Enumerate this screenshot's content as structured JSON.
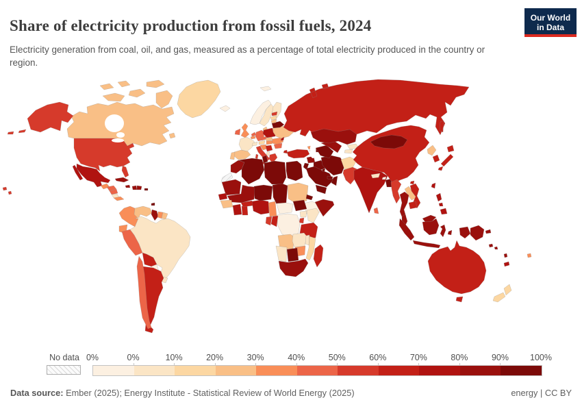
{
  "header": {
    "title": "Share of electricity production from fossil fuels, 2024",
    "subtitle": "Electricity generation from coal, oil, and gas, measured as a percentage of total electricity produced in the country or region."
  },
  "logo": {
    "line1": "Our World",
    "line2": "in Data",
    "bg_color": "#0e2a4d",
    "accent_color": "#dc2a20"
  },
  "legend": {
    "no_data_label": "No data",
    "tick_labels": [
      "0%",
      "0%",
      "10%",
      "20%",
      "30%",
      "40%",
      "50%",
      "60%",
      "70%",
      "80%",
      "90%",
      "100%"
    ],
    "colors": [
      "#FCF0E1",
      "#FBE5C5",
      "#FCD7A2",
      "#F9BF86",
      "#F98E58",
      "#EC6548",
      "#D63A2B",
      "#C32017",
      "#B01310",
      "#9A100D",
      "#7C0A08"
    ]
  },
  "footer": {
    "source_label": "Data source:",
    "source_text": " Ember (2025); Energy Institute - Statistical Review of World Energy (2025)",
    "license": "energy | CC BY"
  },
  "chart_data": {
    "type": "choropleth",
    "title": "Share of electricity production from fossil fuels, 2024",
    "unit": "%",
    "thresholds": [
      0,
      10,
      20,
      30,
      40,
      50,
      60,
      70,
      80,
      90,
      100
    ],
    "no_data_fill": "hatched",
    "countries": [
      {
        "key": "united-states",
        "name": "United States",
        "value": 58
      },
      {
        "key": "canada",
        "name": "Canada",
        "value": 22
      },
      {
        "key": "mexico",
        "name": "Mexico",
        "value": 74
      },
      {
        "key": "greenland",
        "name": "Greenland",
        "value": 15
      },
      {
        "key": "cuba",
        "name": "Cuba",
        "value": 86
      },
      {
        "key": "jamaica",
        "name": "Jamaica",
        "value": 87
      },
      {
        "key": "haiti",
        "name": "Haiti",
        "value": 81
      },
      {
        "key": "dominican-republic",
        "name": "Dominican Republic",
        "value": 88
      },
      {
        "key": "puerto-rico",
        "name": "Puerto Rico",
        "value": 94
      },
      {
        "key": "trinidad-and-tobago",
        "name": "Trinidad and Tobago",
        "value": 99
      },
      {
        "key": "guatemala",
        "name": "Guatemala",
        "value": 38
      },
      {
        "key": "honduras",
        "name": "Honduras",
        "value": 45
      },
      {
        "key": "nicaragua",
        "name": "Nicaragua",
        "value": 45
      },
      {
        "key": "costa-rica",
        "name": "Costa Rica",
        "value": 6
      },
      {
        "key": "panama",
        "name": "Panama",
        "value": 32
      },
      {
        "key": "colombia",
        "name": "Colombia",
        "value": 32
      },
      {
        "key": "venezuela",
        "name": "Venezuela",
        "value": 25
      },
      {
        "key": "guyana",
        "name": "Guyana",
        "value": 85
      },
      {
        "key": "suriname",
        "name": "Suriname",
        "value": 38
      },
      {
        "key": "french-guiana",
        "name": "French Guiana",
        "value": 22
      },
      {
        "key": "ecuador",
        "name": "Ecuador",
        "value": 35
      },
      {
        "key": "peru",
        "name": "Peru",
        "value": 45
      },
      {
        "key": "brazil",
        "name": "Brazil",
        "value": 9
      },
      {
        "key": "bolivia",
        "name": "Bolivia",
        "value": 65
      },
      {
        "key": "paraguay",
        "name": "Paraguay",
        "value": 0
      },
      {
        "key": "uruguay",
        "name": "Uruguay",
        "value": 6
      },
      {
        "key": "chile",
        "name": "Chile",
        "value": 42
      },
      {
        "key": "argentina",
        "name": "Argentina",
        "value": 62
      },
      {
        "key": "iceland",
        "name": "Iceland",
        "value": 0
      },
      {
        "key": "ireland",
        "name": "Ireland",
        "value": 45
      },
      {
        "key": "united-kingdom",
        "name": "United Kingdom",
        "value": 32
      },
      {
        "key": "norway",
        "name": "Norway",
        "value": 0
      },
      {
        "key": "sweden",
        "name": "Sweden",
        "value": 1
      },
      {
        "key": "finland",
        "name": "Finland",
        "value": 7
      },
      {
        "key": "denmark",
        "name": "Denmark",
        "value": 21
      },
      {
        "key": "france",
        "name": "France",
        "value": 8
      },
      {
        "key": "netherlands",
        "name": "Netherlands",
        "value": 42
      },
      {
        "key": "belgium",
        "name": "Belgium",
        "value": 38
      },
      {
        "key": "germany",
        "name": "Germany",
        "value": 46
      },
      {
        "key": "switzerland",
        "name": "Switzerland",
        "value": 1
      },
      {
        "key": "austria",
        "name": "Austria",
        "value": 14
      },
      {
        "key": "czechia",
        "name": "Czechia",
        "value": 44
      },
      {
        "key": "poland",
        "name": "Poland",
        "value": 73
      },
      {
        "key": "slovakia",
        "name": "Slovakia",
        "value": 22
      },
      {
        "key": "hungary",
        "name": "Hungary",
        "value": 33
      },
      {
        "key": "italy",
        "name": "Italy",
        "value": 55
      },
      {
        "key": "spain",
        "name": "Spain",
        "value": 24
      },
      {
        "key": "portugal",
        "name": "Portugal",
        "value": 28
      },
      {
        "key": "croatia",
        "name": "Croatia",
        "value": 35
      },
      {
        "key": "serbia",
        "name": "Serbia",
        "value": 63
      },
      {
        "key": "albania",
        "name": "Albania",
        "value": 1
      },
      {
        "key": "greece",
        "name": "Greece",
        "value": 52
      },
      {
        "key": "romania",
        "name": "Romania",
        "value": 36
      },
      {
        "key": "bulgaria",
        "name": "Bulgaria",
        "value": 42
      },
      {
        "key": "ukraine",
        "name": "Ukraine",
        "value": 24
      },
      {
        "key": "moldova",
        "name": "Moldova",
        "value": 75
      },
      {
        "key": "belarus",
        "name": "Belarus",
        "value": 96
      },
      {
        "key": "estonia",
        "name": "Estonia",
        "value": 52
      },
      {
        "key": "latvia",
        "name": "Latvia",
        "value": 15
      },
      {
        "key": "lithuania",
        "name": "Lithuania",
        "value": 30
      },
      {
        "key": "russia",
        "name": "Russia",
        "value": 63
      },
      {
        "key": "turkey",
        "name": "Turkey",
        "value": 61
      },
      {
        "key": "georgia",
        "name": "Georgia",
        "value": 32
      },
      {
        "key": "armenia",
        "name": "Armenia",
        "value": 42
      },
      {
        "key": "azerbaijan",
        "name": "Azerbaijan",
        "value": 93
      },
      {
        "key": "syria",
        "name": "Syria",
        "value": 90
      },
      {
        "key": "iraq",
        "name": "Iraq",
        "value": 98
      },
      {
        "key": "jordan",
        "name": "Jordan",
        "value": 99
      },
      {
        "key": "saudi-arabia",
        "name": "Saudi Arabia",
        "value": 100
      },
      {
        "key": "kuwait",
        "name": "Kuwait",
        "value": 100
      },
      {
        "key": "yemen",
        "name": "Yemen",
        "value": 100
      },
      {
        "key": "oman",
        "name": "Oman",
        "value": 100
      },
      {
        "key": "united-arab-emirates",
        "name": "United Arab Emirates",
        "value": 95
      },
      {
        "key": "iran",
        "name": "Iran",
        "value": 94
      },
      {
        "key": "morocco",
        "name": "Morocco",
        "value": 87
      },
      {
        "key": "western-sahara",
        "name": "Western Sahara",
        "value": null
      },
      {
        "key": "algeria",
        "name": "Algeria",
        "value": 99
      },
      {
        "key": "tunisia",
        "name": "Tunisia",
        "value": 97
      },
      {
        "key": "libya",
        "name": "Libya",
        "value": 100
      },
      {
        "key": "egypt",
        "name": "Egypt",
        "value": 91
      },
      {
        "key": "mauritania",
        "name": "Mauritania",
        "value": 82
      },
      {
        "key": "mali",
        "name": "Mali",
        "value": 82
      },
      {
        "key": "senegal",
        "name": "Senegal",
        "value": 78
      },
      {
        "key": "guinea",
        "name": "Guinea",
        "value": 28
      },
      {
        "key": "ivory-coast",
        "name": "Cote d'Ivoire",
        "value": 72
      },
      {
        "key": "ghana",
        "name": "Ghana",
        "value": 64
      },
      {
        "key": "burkina-faso",
        "name": "Burkina Faso",
        "value": 66
      },
      {
        "key": "nigeria",
        "name": "Nigeria",
        "value": 76
      },
      {
        "key": "niger",
        "name": "Niger",
        "value": 92
      },
      {
        "key": "chad",
        "name": "Chad",
        "value": 95
      },
      {
        "key": "sudan",
        "name": "Sudan",
        "value": 28
      },
      {
        "key": "south-sudan",
        "name": "South Sudan",
        "value": 93
      },
      {
        "key": "eritrea",
        "name": "Eritrea",
        "value": 99
      },
      {
        "key": "ethiopia",
        "name": "Ethiopia",
        "value": 0
      },
      {
        "key": "somalia",
        "name": "Somalia",
        "value": 85
      },
      {
        "key": "kenya",
        "name": "Kenya",
        "value": 8
      },
      {
        "key": "uganda",
        "name": "Uganda",
        "value": 3
      },
      {
        "key": "rwanda",
        "name": "Rwanda",
        "value": 55
      },
      {
        "key": "tanzania",
        "name": "Tanzania",
        "value": 62
      },
      {
        "key": "democratic-republic-of-congo",
        "name": "Democratic Republic of Congo",
        "value": 0
      },
      {
        "key": "central-african-republic",
        "name": "Central African Republic",
        "value": 0
      },
      {
        "key": "cameroon",
        "name": "Cameroon",
        "value": 32
      },
      {
        "key": "gabon",
        "name": "Gabon",
        "value": 52
      },
      {
        "key": "congo",
        "name": "Congo",
        "value": 68
      },
      {
        "key": "angola",
        "name": "Angola",
        "value": 26
      },
      {
        "key": "zambia",
        "name": "Zambia",
        "value": 4
      },
      {
        "key": "malawi",
        "name": "Malawi",
        "value": 10
      },
      {
        "key": "mozambique",
        "name": "Mozambique",
        "value": 13
      },
      {
        "key": "zimbabwe",
        "name": "Zimbabwe",
        "value": 36
      },
      {
        "key": "botswana",
        "name": "Botswana",
        "value": 99
      },
      {
        "key": "namibia",
        "name": "Namibia",
        "value": 4
      },
      {
        "key": "south-africa",
        "name": "South Africa",
        "value": 85
      },
      {
        "key": "madagascar",
        "name": "Madagascar",
        "value": 66
      },
      {
        "key": "kazakhstan",
        "name": "Kazakhstan",
        "value": 85
      },
      {
        "key": "uzbekistan",
        "name": "Uzbekistan",
        "value": 88
      },
      {
        "key": "turkmenistan",
        "name": "Turkmenistan",
        "value": 100
      },
      {
        "key": "kyrgyzstan",
        "name": "Kyrgyzstan",
        "value": 8
      },
      {
        "key": "tajikistan",
        "name": "Tajikistan",
        "value": 7
      },
      {
        "key": "afghanistan",
        "name": "Afghanistan",
        "value": 18
      },
      {
        "key": "pakistan",
        "name": "Pakistan",
        "value": 55
      },
      {
        "key": "india",
        "name": "India",
        "value": 76
      },
      {
        "key": "nepal",
        "name": "Nepal",
        "value": 3
      },
      {
        "key": "bhutan",
        "name": "Bhutan",
        "value": 0
      },
      {
        "key": "bangladesh",
        "name": "Bangladesh",
        "value": 98
      },
      {
        "key": "sri-lanka",
        "name": "Sri Lanka",
        "value": 45
      },
      {
        "key": "myanmar",
        "name": "Myanmar",
        "value": 55
      },
      {
        "key": "thailand",
        "name": "Thailand",
        "value": 85
      },
      {
        "key": "laos",
        "name": "Laos",
        "value": 25
      },
      {
        "key": "vietnam",
        "name": "Vietnam",
        "value": 62
      },
      {
        "key": "cambodia",
        "name": "Cambodia",
        "value": 62
      },
      {
        "key": "malaysia",
        "name": "Malaysia",
        "value": 84
      },
      {
        "key": "indonesia",
        "name": "Indonesia",
        "value": 82
      },
      {
        "key": "philippines",
        "name": "Philippines",
        "value": 78
      },
      {
        "key": "china",
        "name": "China",
        "value": 62
      },
      {
        "key": "mongolia",
        "name": "Mongolia",
        "value": 92
      },
      {
        "key": "north-korea",
        "name": "North Korea",
        "value": 25
      },
      {
        "key": "south-korea",
        "name": "South Korea",
        "value": 62
      },
      {
        "key": "japan",
        "name": "Japan",
        "value": 65
      },
      {
        "key": "taiwan",
        "name": "Taiwan",
        "value": 80
      },
      {
        "key": "australia",
        "name": "Australia",
        "value": 62
      },
      {
        "key": "new-zealand",
        "name": "New Zealand",
        "value": 12
      },
      {
        "key": "papua-new-guinea",
        "name": "Papua New Guinea",
        "value": 82
      },
      {
        "key": "fiji",
        "name": "Fiji",
        "value": 38
      },
      {
        "key": "new-caledonia",
        "name": "New Caledonia",
        "value": 78
      },
      {
        "key": "solomon-islands",
        "name": "Solomon Islands",
        "value": 82
      },
      {
        "key": "vanuatu",
        "name": "Vanuatu",
        "value": 82
      }
    ]
  }
}
